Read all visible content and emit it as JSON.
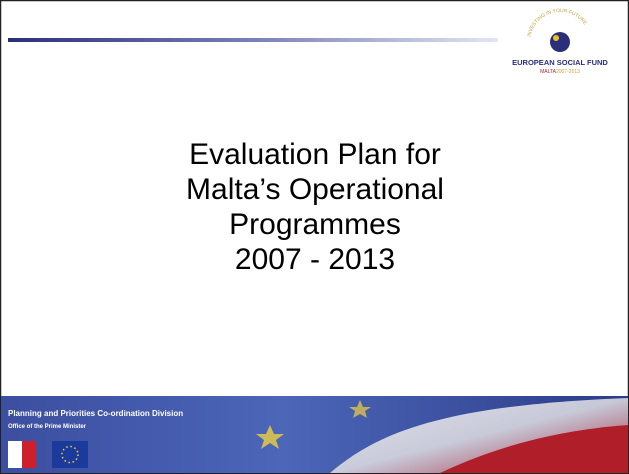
{
  "logo": {
    "arc_text": "INVESTING IN YOUR FUTURE",
    "name": "EUROPEAN SOCIAL FUND",
    "sub_country": "MALTA",
    "sub_years": "2007-2013"
  },
  "title": {
    "lines": [
      "Evaluation Plan for",
      "Malta’s Operational",
      "Programmes",
      "2007 - 2013"
    ]
  },
  "footer": {
    "division": "Planning and Priorities Co-ordination Division",
    "office": "Office of the Prime Minister"
  }
}
